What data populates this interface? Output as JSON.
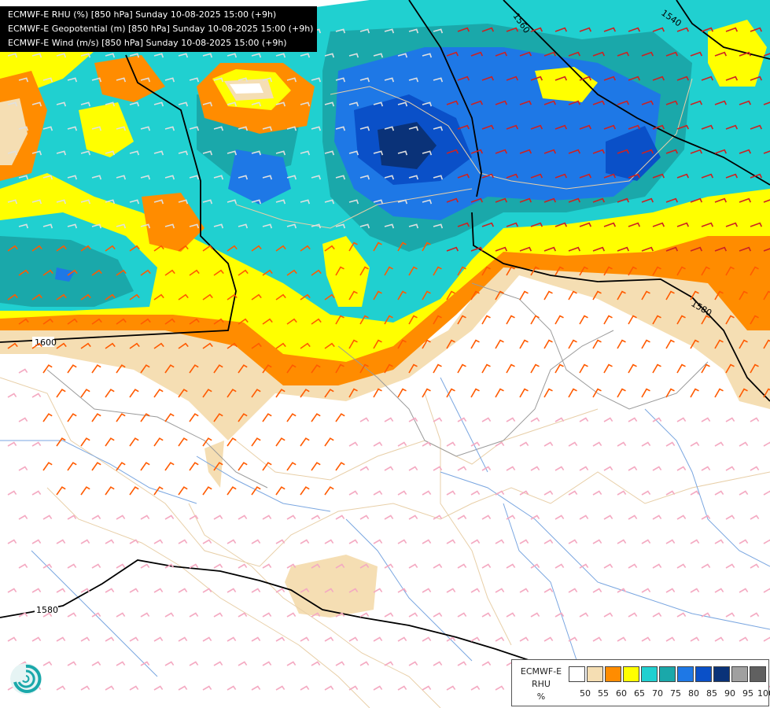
{
  "header": {
    "lines": [
      "ECMWF-E RHU (%) [850 hPa] Sunday 10-08-2025 15:00 (+9h)",
      "ECMWF-E Geopotential (m) [850 hPa] Sunday 10-08-2025 15:00 (+9h)",
      "ECMWF-E Wind (m/s) [850 hPa] Sunday 10-08-2025 15:00 (+9h)"
    ]
  },
  "contour_labels": [
    "1540",
    "1560",
    "1580",
    "1600",
    "1580"
  ],
  "legend": {
    "title_lines": [
      "ECMWF-E",
      "RHU",
      "%"
    ],
    "ticks": [
      "50",
      "55",
      "60",
      "65",
      "70",
      "75",
      "80",
      "85",
      "90",
      "95",
      "100"
    ],
    "colors": [
      "#ffffff",
      "#f5deb3",
      "#ff8c00",
      "#ffff00",
      "#20d0d0",
      "#1aa8aa",
      "#1e78e6",
      "#0a50c8",
      "#0a3278",
      "#a0a0a0",
      "#606060"
    ]
  },
  "logo": {
    "icon": "ecmwf-swirl-icon"
  }
}
